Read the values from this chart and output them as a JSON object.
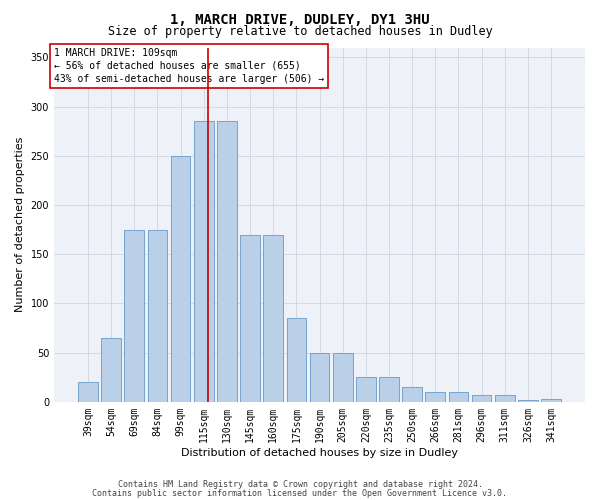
{
  "title": "1, MARCH DRIVE, DUDLEY, DY1 3HU",
  "subtitle": "Size of property relative to detached houses in Dudley",
  "xlabel": "Distribution of detached houses by size in Dudley",
  "ylabel": "Number of detached properties",
  "footer1": "Contains HM Land Registry data © Crown copyright and database right 2024.",
  "footer2": "Contains public sector information licensed under the Open Government Licence v3.0.",
  "annotation_line1": "1 MARCH DRIVE: 109sqm",
  "annotation_line2": "← 56% of detached houses are smaller (655)",
  "annotation_line3": "43% of semi-detached houses are larger (506) →",
  "categories": [
    "39sqm",
    "54sqm",
    "69sqm",
    "84sqm",
    "99sqm",
    "115sqm",
    "130sqm",
    "145sqm",
    "160sqm",
    "175sqm",
    "190sqm",
    "205sqm",
    "220sqm",
    "235sqm",
    "250sqm",
    "266sqm",
    "281sqm",
    "296sqm",
    "311sqm",
    "326sqm",
    "341sqm"
  ],
  "values": [
    20,
    65,
    175,
    175,
    250,
    285,
    285,
    170,
    170,
    85,
    50,
    50,
    25,
    25,
    15,
    10,
    10,
    7,
    7,
    2,
    3
  ],
  "bar_color": "#bad0e8",
  "bar_edge_color": "#6699cc",
  "vline_color": "#cc0000",
  "vline_x_index": 5.17,
  "annotation_box_edge": "#cc0000",
  "bg_color": "#eef2f8",
  "ylim": [
    0,
    360
  ],
  "yticks": [
    0,
    50,
    100,
    150,
    200,
    250,
    300,
    350
  ],
  "title_fontsize": 10,
  "subtitle_fontsize": 8.5,
  "tick_fontsize": 7,
  "ylabel_fontsize": 8,
  "xlabel_fontsize": 8,
  "footer_fontsize": 6,
  "annot_fontsize": 7
}
